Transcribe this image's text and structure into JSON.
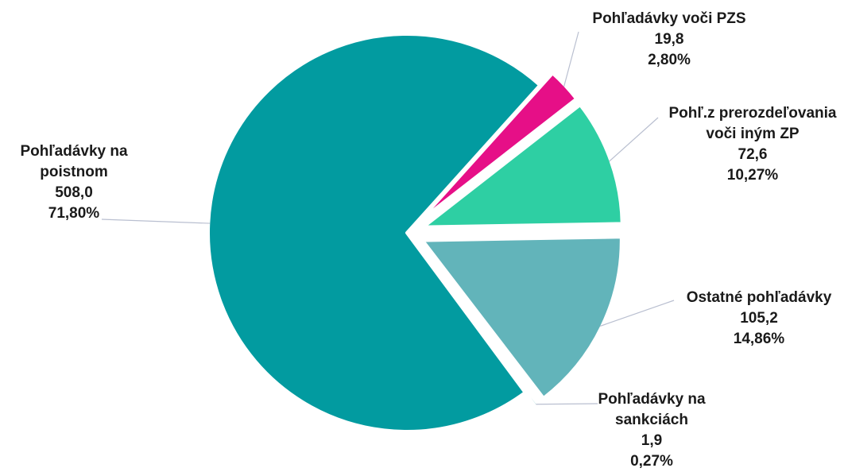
{
  "chart_data": {
    "type": "pie",
    "title": "",
    "slices": [
      {
        "label": "Pohľadávky na poistnom",
        "label_lines": [
          "Pohľadávky na",
          "poistnom"
        ],
        "value": 508.0,
        "value_text": "508,0",
        "percent": 71.8,
        "percent_text": "71,80%",
        "color": "#029ba0",
        "exploded": false
      },
      {
        "label": "Pohľadávky voči PZS",
        "label_lines": [
          "Pohľadávky voči PZS"
        ],
        "value": 19.8,
        "value_text": "19,8",
        "percent": 2.8,
        "percent_text": "2,80%",
        "color": "#e60f87",
        "exploded": true
      },
      {
        "label": "Pohľ.z prerozdeľovania voči iným ZP",
        "label_lines": [
          "Pohľ.z prerozdeľovania",
          "voči iným ZP"
        ],
        "value": 72.6,
        "value_text": "72,6",
        "percent": 10.27,
        "percent_text": "10,27%",
        "color": "#2ecfa3",
        "exploded": true
      },
      {
        "label": "Ostatné pohľadávky",
        "label_lines": [
          "Ostatné pohľadávky"
        ],
        "value": 105.2,
        "value_text": "105,2",
        "percent": 14.86,
        "percent_text": "14,86%",
        "color": "#62b4ba",
        "exploded": true
      },
      {
        "label": "Pohľadávky na sankciách",
        "label_lines": [
          "Pohľadávky na",
          "sankciách"
        ],
        "value": 1.9,
        "value_text": "1,9",
        "percent": 0.27,
        "percent_text": "0,27%",
        "color": "#4fb1b6",
        "exploded": true
      }
    ],
    "legend": "none"
  }
}
